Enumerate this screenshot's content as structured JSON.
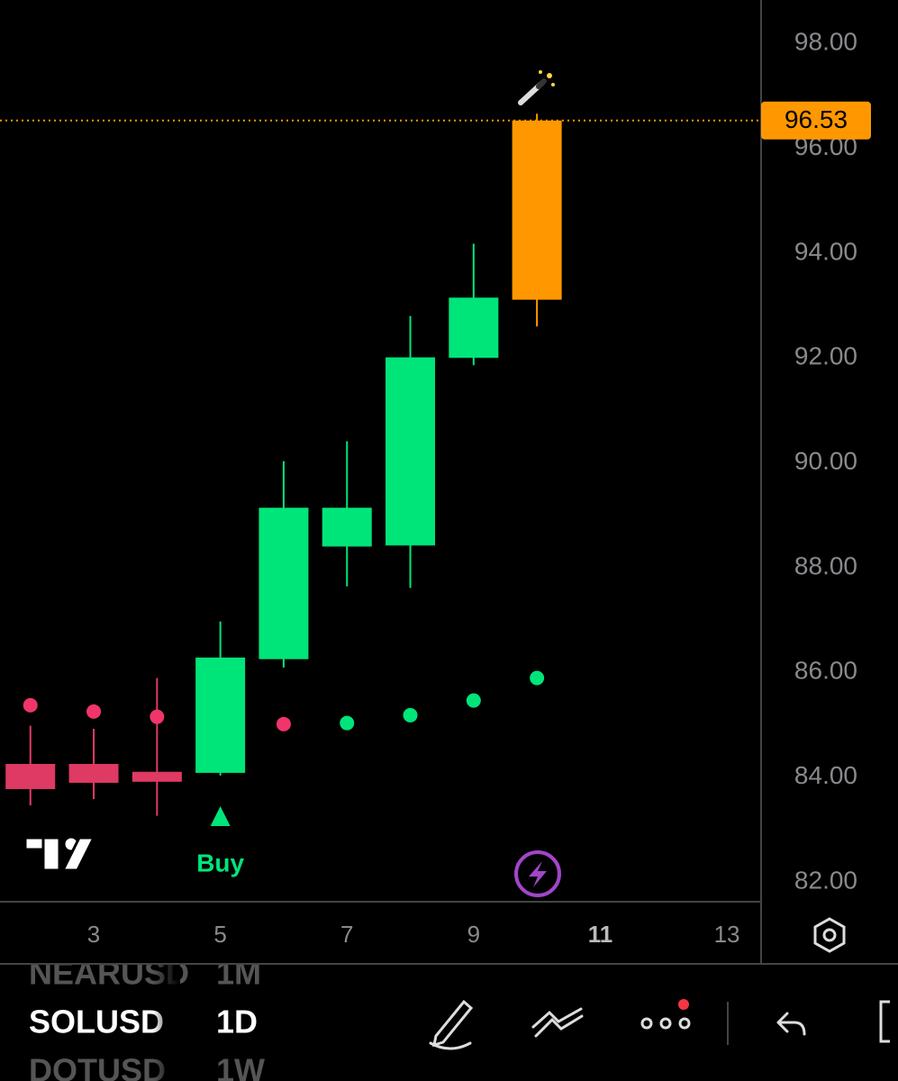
{
  "chart_data": {
    "type": "candlestick",
    "x": [
      2,
      3,
      4,
      5,
      6,
      7,
      8,
      9,
      10
    ],
    "open": [
      84.25,
      84.25,
      84.1,
      84.08,
      86.25,
      88.4,
      88.42,
      92.0,
      93.11
    ],
    "high": [
      84.98,
      84.92,
      85.89,
      86.97,
      90.03,
      90.41,
      92.8,
      94.18,
      96.66
    ],
    "low": [
      83.46,
      83.58,
      83.26,
      84.03,
      86.09,
      87.64,
      87.61,
      91.86,
      92.6
    ],
    "close": [
      83.77,
      83.89,
      83.91,
      86.28,
      89.14,
      89.14,
      92.01,
      93.15,
      96.53
    ],
    "up_color": "#00e57a",
    "down_color": "#de3a63",
    "last_color": "#ff9800",
    "indicator": {
      "values": [
        85.37,
        85.25,
        85.15,
        null,
        85.01,
        85.03,
        85.18,
        85.46,
        85.89
      ],
      "colors": [
        "#f0356a",
        "#f0356a",
        "#f0356a",
        null,
        "#f0356a",
        "#00e57a",
        "#00e57a",
        "#00e57a",
        "#00e57a"
      ]
    },
    "signals": [
      {
        "x": 5,
        "label": "Buy"
      }
    ],
    "ylim": [
      81.62,
      98.83
    ],
    "yticks": [
      {
        "value": 82,
        "label": "82.00"
      },
      {
        "value": 84,
        "label": "84.00"
      },
      {
        "value": 86,
        "label": "86.00"
      },
      {
        "value": 88,
        "label": "88.00"
      },
      {
        "value": 90,
        "label": "90.00"
      },
      {
        "value": 92,
        "label": "92.00"
      },
      {
        "value": 94,
        "label": "94.00"
      },
      {
        "value": 96,
        "label": "96.00"
      },
      {
        "value": 98,
        "label": "98.00"
      }
    ],
    "xlim": [
      1.52,
      13.54
    ],
    "xticks": [
      3,
      5,
      7,
      9,
      11,
      13
    ],
    "current_xtick": 11
  },
  "toolbar": {
    "symbols": [
      "NEARUSD",
      "SOLUSD",
      "DOTUSD"
    ],
    "intervals": [
      "1M",
      "1D",
      "1W"
    ]
  }
}
